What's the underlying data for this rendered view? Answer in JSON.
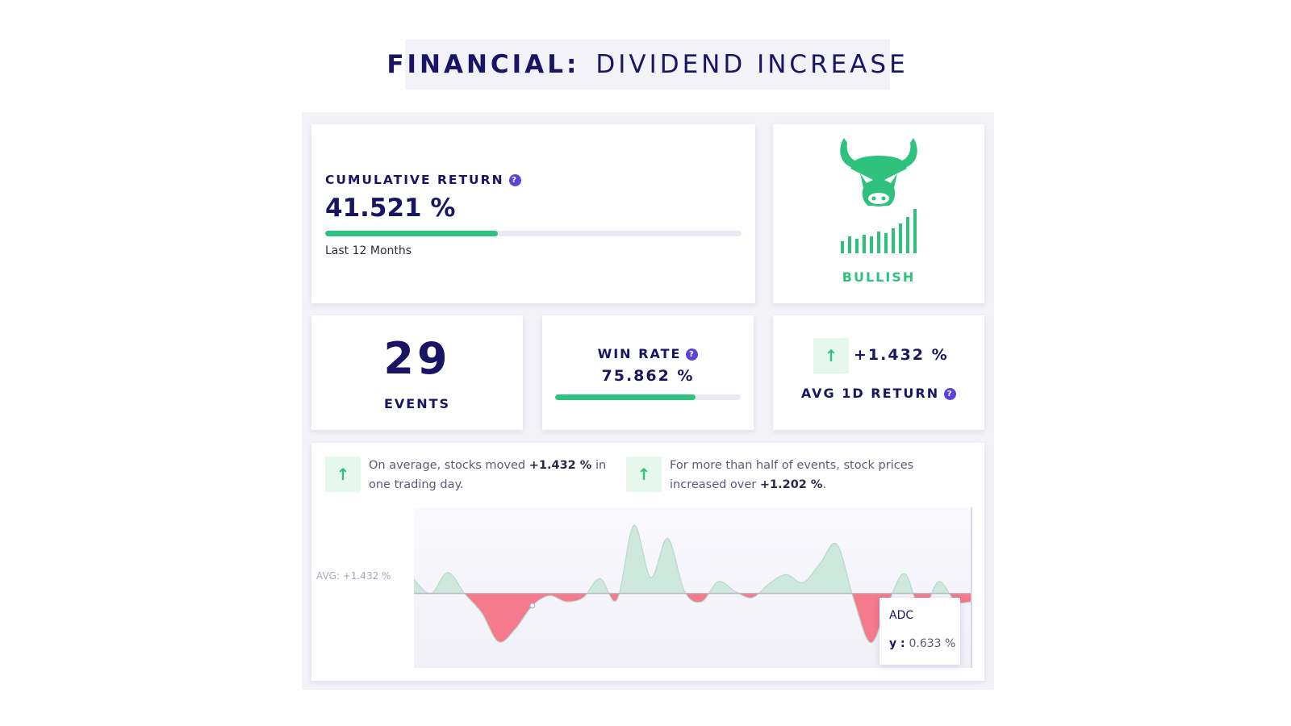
{
  "header": {
    "title_bold": "FINANCIAL:",
    "title_light": "DIVIDEND INCREASE"
  },
  "cumulative": {
    "label": "CUMULATIVE RETURN",
    "value": "41.521 %",
    "progress": 0.415,
    "period": "Last 12 Months"
  },
  "sentiment": {
    "label": "BULLISH",
    "icon": "bull-icon",
    "color": "#2ec27e"
  },
  "events": {
    "count": "29",
    "label": "EVENTS"
  },
  "win_rate": {
    "label": "WIN RATE",
    "value": "75.862 %",
    "progress": 0.75862
  },
  "avg_return": {
    "value": "+1.432 %",
    "label": "AVG 1D RETURN",
    "arrow": "↑"
  },
  "insights": [
    {
      "arrow": "↑",
      "pre": "On average, stocks moved ",
      "bold": "+1.432 %",
      "post": " in one trading day."
    },
    {
      "arrow": "↑",
      "pre": "For more than half of events, stock prices increased over ",
      "bold": "+1.202 %",
      "post": "."
    }
  ],
  "colors": {
    "accent": "#1a1464",
    "positive": "#2ec27e",
    "negative": "#f47a8c",
    "help": "#5a45d6"
  },
  "chart_data": {
    "type": "area",
    "title": "",
    "avg_label": "AVG: +1.432 %",
    "avg": 1.432,
    "ylim": [
      -6,
      10
    ],
    "y": [
      2.8,
      1.4,
      3.5,
      1.4,
      -0.5,
      -3.4,
      -2.1,
      0.2,
      1.2,
      0.6,
      1.0,
      2.9,
      0.8,
      8.2,
      3.0,
      6.9,
      1.6,
      0.6,
      2.6,
      1.6,
      1.0,
      2.4,
      3.3,
      2.5,
      4.4,
      6.3,
      0.8,
      -3.5,
      0.3,
      3.4,
      -0.5,
      2.6,
      0.633,
      0.6
    ],
    "tooltip": {
      "name": "ADC",
      "label": "y",
      "value": "0.633 %"
    }
  }
}
